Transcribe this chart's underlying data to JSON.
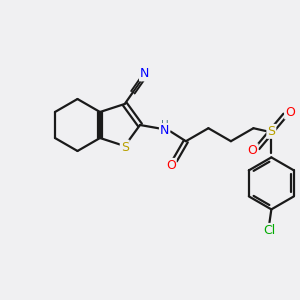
{
  "bg_color": "#f0f0f2",
  "bond_color": "#1a1a1a",
  "atom_colors": {
    "N": "#0000ff",
    "S_thio": "#b8a000",
    "S_sulfon": "#b8a000",
    "O": "#ff0000",
    "Cl": "#00aa00",
    "H": "#4a7a8a",
    "C": "#1a1a1a"
  },
  "figsize": [
    3.0,
    3.0
  ],
  "dpi": 100
}
